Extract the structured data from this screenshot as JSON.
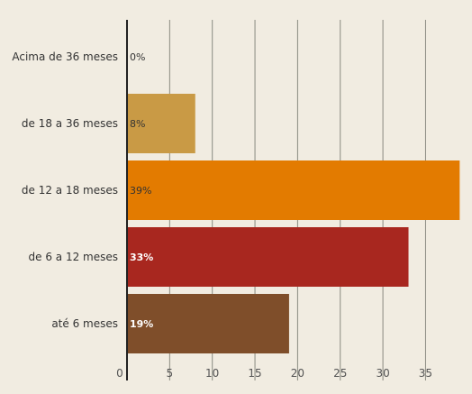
{
  "chart_data": {
    "type": "bar",
    "orientation": "horizontal",
    "categories": [
      "Acima de 36 meses",
      "de 18 a 36 meses",
      "de 12 a 18 meses",
      "de 6 a 12 meses",
      "até 6 meses"
    ],
    "values": [
      0,
      8,
      39,
      33,
      19
    ],
    "data_labels": [
      "0%",
      "8%",
      "39%",
      "33%",
      "19%"
    ],
    "bar_colors": [
      "#c99a45",
      "#c99a45",
      "#e37b00",
      "#a8271f",
      "#7f4e2a"
    ],
    "label_colors": [
      "#333333",
      "#333333",
      "#333333",
      "#ffffff",
      "#ffffff"
    ],
    "label_bold": [
      false,
      false,
      false,
      true,
      true
    ],
    "x_ticks": [
      0,
      5,
      10,
      15,
      20,
      25,
      30,
      35
    ],
    "x_tick_labels": [
      "0",
      "5",
      "10",
      "15",
      "20",
      "25",
      "30",
      "35"
    ],
    "xlim": [
      0,
      39.5
    ],
    "grid": true,
    "title": "",
    "xlabel": "",
    "ylabel": ""
  },
  "colors": {
    "background": "#f1ece1",
    "grid": "#8a8a80",
    "axis": "#222222"
  }
}
